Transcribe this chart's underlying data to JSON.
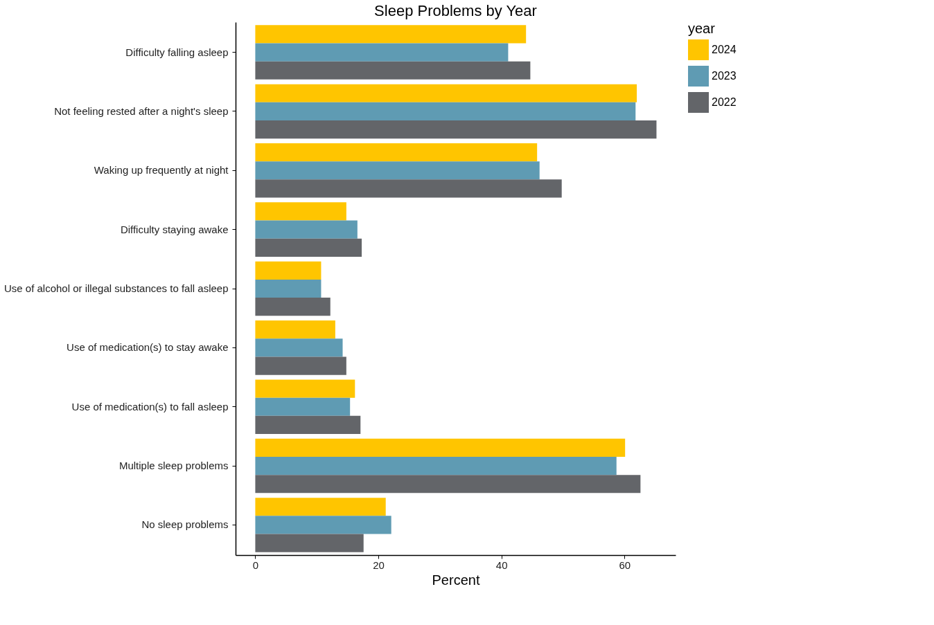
{
  "chart_data": {
    "type": "bar",
    "orientation": "horizontal",
    "title": "Sleep Problems by Year",
    "xlabel": "Percent",
    "legend_title": "year",
    "legend": "right",
    "grid": false,
    "categories": [
      "Difficulty falling asleep",
      "Not feeling rested after a night's sleep",
      "Waking up frequently at night",
      "Difficulty staying awake",
      "Use of alcohol or illegal substances to fall asleep",
      "Use of medication(s) to stay awake",
      "Use of medication(s) to fall asleep",
      "Multiple sleep problems",
      "No sleep problems"
    ],
    "series": [
      {
        "name": "2024",
        "color": "#ffc500",
        "values": [
          44.0,
          62.0,
          45.8,
          14.8,
          10.7,
          13.0,
          16.2,
          60.1,
          21.2
        ]
      },
      {
        "name": "2023",
        "color": "#5f9bb3",
        "values": [
          41.1,
          61.8,
          46.2,
          16.6,
          10.7,
          14.2,
          15.4,
          58.7,
          22.1
        ]
      },
      {
        "name": "2022",
        "color": "#636569",
        "values": [
          44.7,
          65.2,
          49.8,
          17.3,
          12.2,
          14.8,
          17.1,
          62.6,
          17.6
        ]
      }
    ],
    "xlim": [
      -3.2,
      68.3
    ],
    "xticks": [
      0,
      20,
      40,
      60
    ]
  }
}
